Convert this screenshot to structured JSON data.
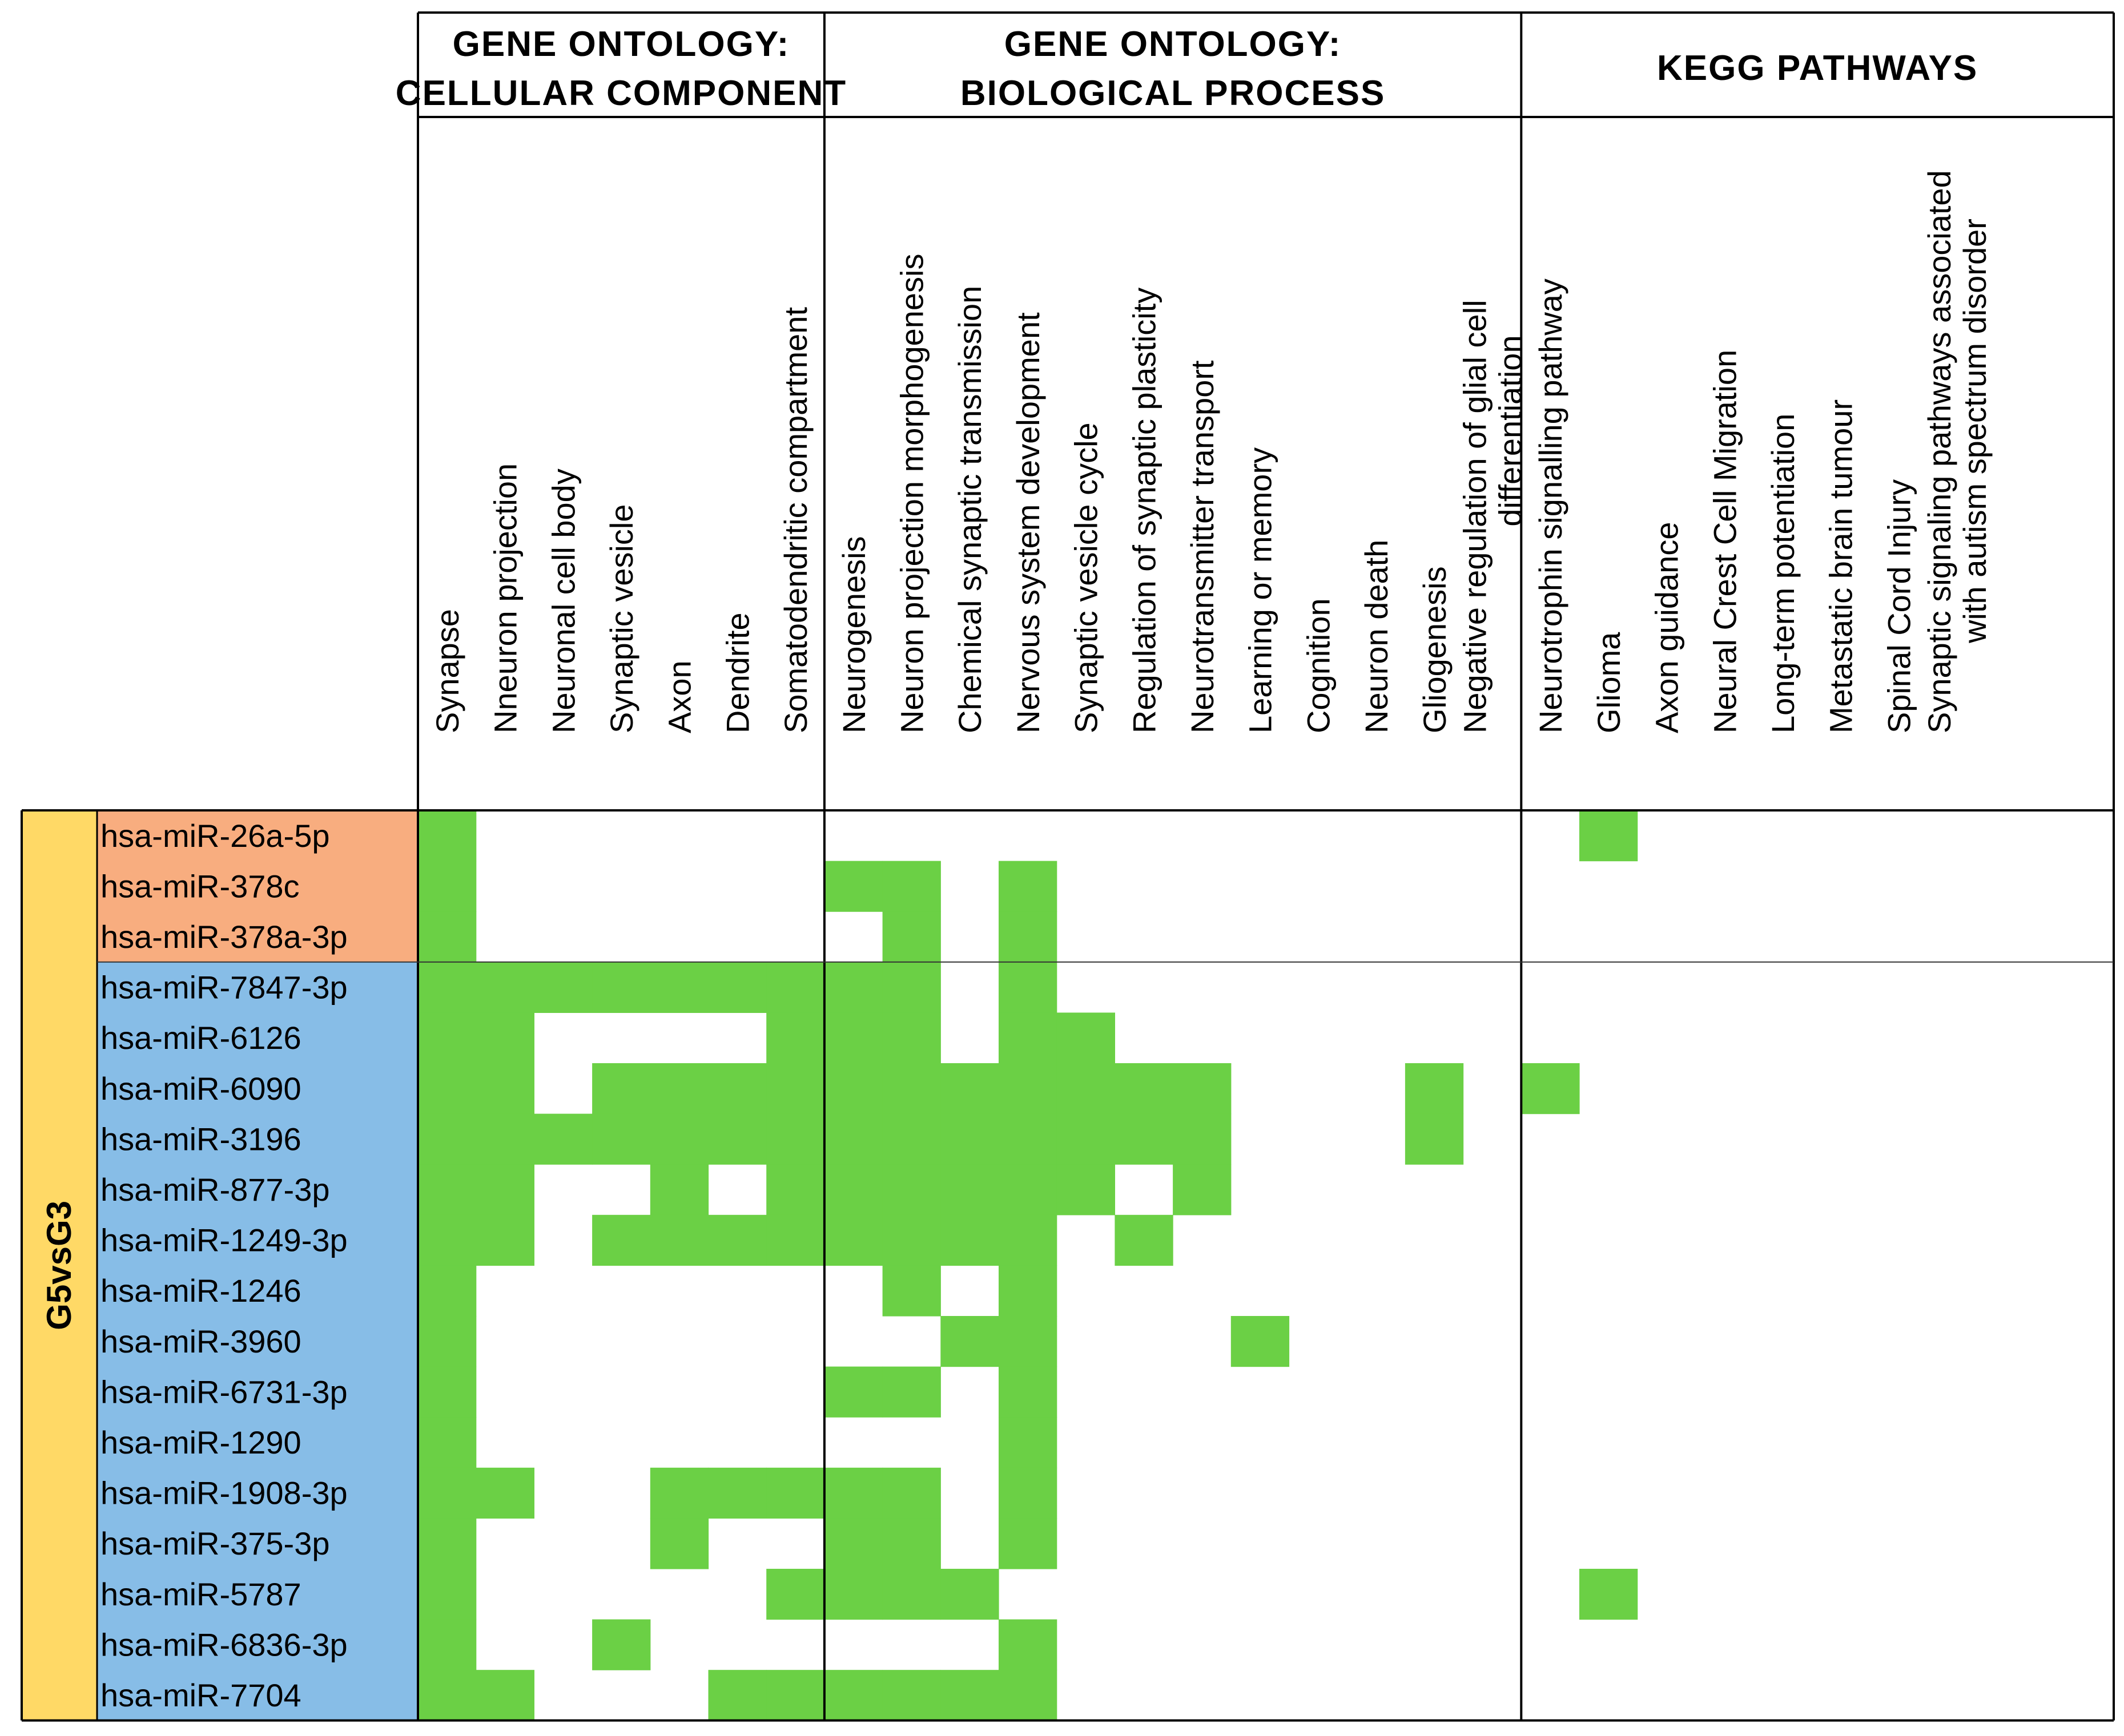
{
  "chart_data": {
    "type": "heatmap",
    "title": "",
    "colors": {
      "hit": "#6BD045",
      "empty": "#FFFFFF",
      "group": "#FFD966",
      "rows_orange": "#F8AD7F",
      "rows_blue": "#87BDE7",
      "grid": "#000000"
    },
    "group_label": "G5vsG3",
    "sections": [
      {
        "title_lines": [
          "GENE ONTOLOGY:",
          "CELLULAR COMPONENT"
        ],
        "columns": [
          {
            "lines": [
              "Synapse"
            ]
          },
          {
            "lines": [
              "Nneuron projection"
            ]
          },
          {
            "lines": [
              "Neuronal cell body"
            ]
          },
          {
            "lines": [
              "Synaptic vesicle"
            ]
          },
          {
            "lines": [
              "Axon"
            ]
          },
          {
            "lines": [
              "Dendrite"
            ]
          },
          {
            "lines": [
              "Somatodendritic compartment"
            ]
          }
        ]
      },
      {
        "title_lines": [
          "GENE ONTOLOGY:",
          "BIOLOGICAL PROCESS"
        ],
        "columns": [
          {
            "lines": [
              "Neurogenesis"
            ]
          },
          {
            "lines": [
              "Neuron projection morphogenesis"
            ]
          },
          {
            "lines": [
              "Chemical synaptic transmission"
            ]
          },
          {
            "lines": [
              "Nervous system development"
            ]
          },
          {
            "lines": [
              "Synaptic vesicle cycle"
            ]
          },
          {
            "lines": [
              "Regulation of synaptic plasticity"
            ]
          },
          {
            "lines": [
              "Neurotransmitter transport"
            ]
          },
          {
            "lines": [
              "Learning or memory"
            ]
          },
          {
            "lines": [
              "Cognition"
            ]
          },
          {
            "lines": [
              "Neuron death"
            ]
          },
          {
            "lines": [
              "Gliogenesis"
            ]
          },
          {
            "lines": [
              "Negative regulation of glial cell",
              "differentiation"
            ]
          }
        ]
      },
      {
        "title_lines": [
          "KEGG PATHWAYS"
        ],
        "columns": [
          {
            "lines": [
              "Neurotrophin signalling pathway"
            ]
          },
          {
            "lines": [
              "Glioma"
            ]
          },
          {
            "lines": [
              "Axon guidance"
            ]
          },
          {
            "lines": [
              "Neural Crest Cell Migration"
            ]
          },
          {
            "lines": [
              "Long-term potentiation"
            ]
          },
          {
            "lines": [
              "Metastatic brain tumour"
            ]
          },
          {
            "lines": [
              "Spinal Cord Injury"
            ]
          },
          {
            "lines": [
              "Synaptic signaling pathways associated",
              "with autism spectrum disorder"
            ]
          }
        ]
      }
    ],
    "row_groups": [
      {
        "color": "rows_orange",
        "rows": [
          "hsa-miR-26a-5p",
          "hsa-miR-378c",
          "hsa-miR-378a-3p"
        ]
      },
      {
        "color": "rows_blue",
        "rows": [
          "hsa-miR-7847-3p",
          "hsa-miR-6126",
          "hsa-miR-6090",
          "hsa-miR-3196",
          "hsa-miR-877-3p",
          "hsa-miR-1249-3p",
          "hsa-miR-1246",
          "hsa-miR-3960",
          "hsa-miR-6731-3p",
          "hsa-miR-1290",
          "hsa-miR-1908-3p",
          "hsa-miR-375-3p",
          "hsa-miR-5787",
          "hsa-miR-6836-3p",
          "hsa-miR-7704"
        ]
      }
    ],
    "matrix": [
      [
        1,
        0,
        0,
        0,
        0,
        0,
        0,
        0,
        0,
        0,
        0,
        0,
        0,
        0,
        0,
        0,
        0,
        0,
        0,
        0,
        1,
        0,
        0,
        0,
        0,
        0,
        0
      ],
      [
        1,
        0,
        0,
        0,
        0,
        0,
        0,
        1,
        1,
        0,
        1,
        0,
        0,
        0,
        0,
        0,
        0,
        0,
        0,
        0,
        0,
        0,
        0,
        0,
        0,
        0,
        0
      ],
      [
        1,
        0,
        0,
        0,
        0,
        0,
        0,
        0,
        1,
        0,
        1,
        0,
        0,
        0,
        0,
        0,
        0,
        0,
        0,
        0,
        0,
        0,
        0,
        0,
        0,
        0,
        0
      ],
      [
        1,
        1,
        1,
        1,
        1,
        1,
        1,
        1,
        1,
        0,
        1,
        0,
        0,
        0,
        0,
        0,
        0,
        0,
        0,
        0,
        0,
        0,
        0,
        0,
        0,
        0,
        0
      ],
      [
        1,
        1,
        0,
        0,
        0,
        0,
        1,
        1,
        1,
        0,
        1,
        1,
        0,
        0,
        0,
        0,
        0,
        0,
        0,
        0,
        0,
        0,
        0,
        0,
        0,
        0,
        0
      ],
      [
        1,
        1,
        0,
        1,
        1,
        1,
        1,
        1,
        1,
        1,
        1,
        1,
        1,
        1,
        0,
        0,
        0,
        1,
        0,
        1,
        0,
        0,
        0,
        0,
        0,
        0,
        0
      ],
      [
        1,
        1,
        1,
        1,
        1,
        1,
        1,
        1,
        1,
        1,
        1,
        1,
        1,
        1,
        0,
        0,
        0,
        1,
        0,
        0,
        0,
        0,
        0,
        0,
        0,
        0,
        0
      ],
      [
        1,
        1,
        0,
        0,
        1,
        0,
        1,
        1,
        1,
        1,
        1,
        1,
        0,
        1,
        0,
        0,
        0,
        0,
        0,
        0,
        0,
        0,
        0,
        0,
        0,
        0,
        0
      ],
      [
        1,
        1,
        0,
        1,
        1,
        1,
        1,
        1,
        1,
        1,
        1,
        0,
        1,
        0,
        0,
        0,
        0,
        0,
        0,
        0,
        0,
        0,
        0,
        0,
        0,
        0,
        0
      ],
      [
        1,
        0,
        0,
        0,
        0,
        0,
        0,
        0,
        1,
        0,
        1,
        0,
        0,
        0,
        0,
        0,
        0,
        0,
        0,
        0,
        0,
        0,
        0,
        0,
        0,
        0,
        0
      ],
      [
        1,
        0,
        0,
        0,
        0,
        0,
        0,
        0,
        0,
        1,
        1,
        0,
        0,
        0,
        1,
        0,
        0,
        0,
        0,
        0,
        0,
        0,
        0,
        0,
        0,
        0,
        0
      ],
      [
        1,
        0,
        0,
        0,
        0,
        0,
        0,
        1,
        1,
        0,
        1,
        0,
        0,
        0,
        0,
        0,
        0,
        0,
        0,
        0,
        0,
        0,
        0,
        0,
        0,
        0,
        0
      ],
      [
        1,
        0,
        0,
        0,
        0,
        0,
        0,
        0,
        0,
        0,
        1,
        0,
        0,
        0,
        0,
        0,
        0,
        0,
        0,
        0,
        0,
        0,
        0,
        0,
        0,
        0,
        0
      ],
      [
        1,
        1,
        0,
        0,
        1,
        1,
        1,
        1,
        1,
        0,
        1,
        0,
        0,
        0,
        0,
        0,
        0,
        0,
        0,
        0,
        0,
        0,
        0,
        0,
        0,
        0,
        0
      ],
      [
        1,
        0,
        0,
        0,
        1,
        0,
        0,
        1,
        1,
        0,
        1,
        0,
        0,
        0,
        0,
        0,
        0,
        0,
        0,
        0,
        0,
        0,
        0,
        0,
        0,
        0,
        0
      ],
      [
        1,
        0,
        0,
        0,
        0,
        0,
        1,
        1,
        1,
        1,
        0,
        0,
        0,
        0,
        0,
        0,
        0,
        0,
        0,
        0,
        1,
        0,
        0,
        0,
        0,
        0,
        0
      ],
      [
        1,
        0,
        0,
        1,
        0,
        0,
        0,
        0,
        0,
        0,
        1,
        0,
        0,
        0,
        0,
        0,
        0,
        0,
        0,
        0,
        0,
        0,
        0,
        0,
        0,
        0,
        0
      ],
      [
        1,
        1,
        0,
        0,
        0,
        1,
        1,
        1,
        1,
        1,
        1,
        0,
        0,
        0,
        0,
        0,
        0,
        0,
        0,
        0,
        0,
        0,
        0,
        0,
        0,
        0,
        0
      ]
    ]
  }
}
